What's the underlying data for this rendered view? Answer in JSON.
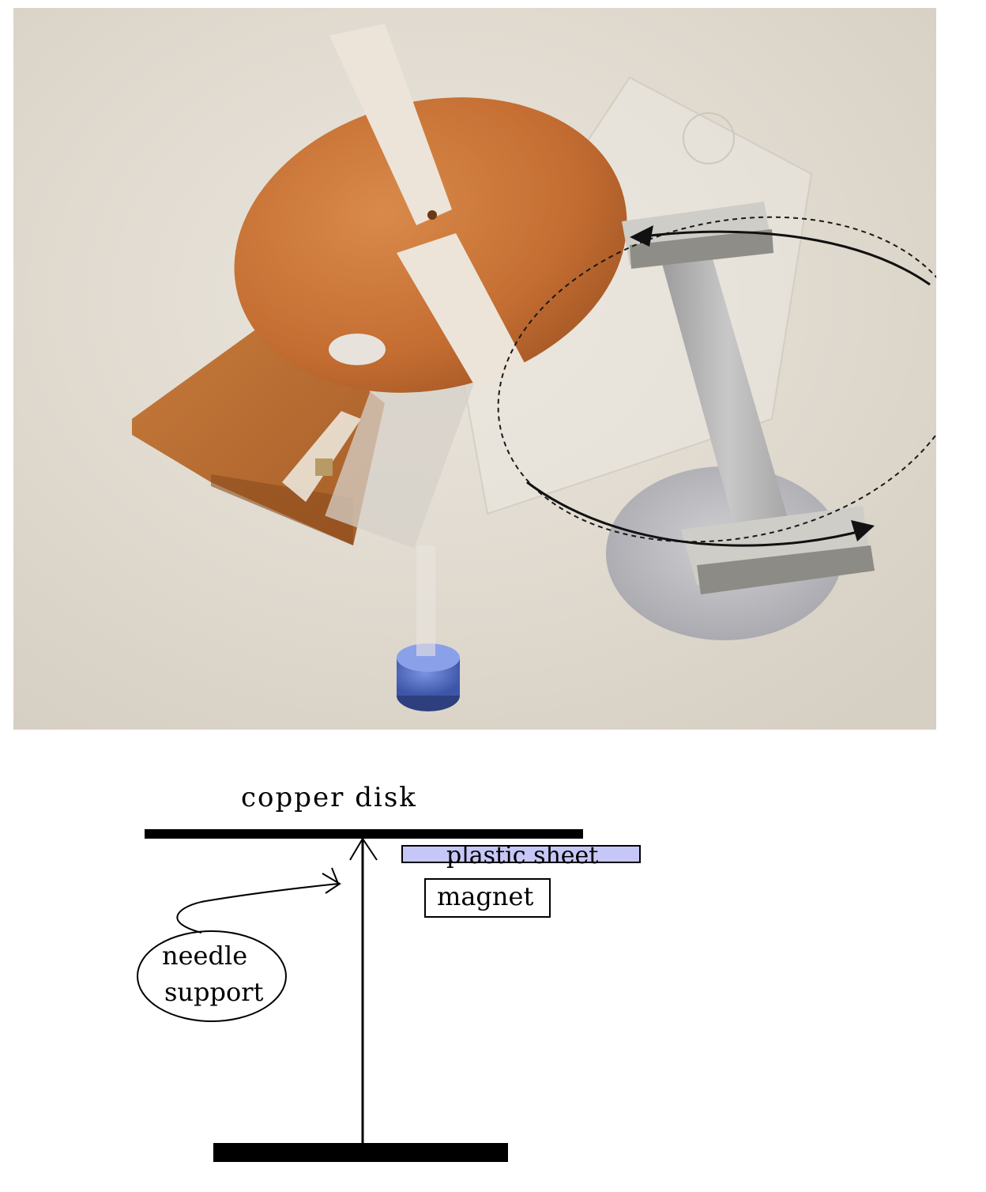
{
  "diagram": {
    "labels": {
      "copper_disk": "copper disk",
      "plastic_sheet": "plastic sheet",
      "magnet": "magnet",
      "needle_support_line1": "needle",
      "needle_support_line2": "support"
    }
  },
  "colors": {
    "copper": "#c8753b",
    "tape": "#ece4d8",
    "plastic_sheet_fill": "#c7c7f7",
    "background_photo": "#e2dcd2",
    "magnet_metal": "#b4b4b4",
    "cap_blue": "#5a73c8"
  }
}
